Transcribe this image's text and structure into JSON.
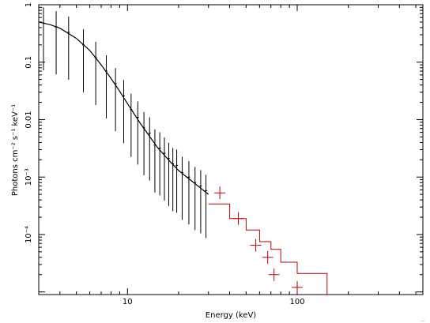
{
  "chart_data": {
    "type": "line",
    "xlabel": "Energy (keV)",
    "ylabel": "Photons cm⁻² s⁻¹ keV⁻¹",
    "xscale": "log",
    "yscale": "log",
    "xlim": [
      3,
      550
    ],
    "ylim": [
      9e-06,
      1
    ],
    "x_ticks": [
      {
        "value": 10,
        "label": "10"
      },
      {
        "value": 100,
        "label": "100"
      }
    ],
    "y_ticks": [
      {
        "value": 1,
        "label": "1"
      },
      {
        "value": 0.1,
        "label": "0.1"
      },
      {
        "value": 0.01,
        "label": "0.01"
      },
      {
        "value": 0.001,
        "label": "10⁻³"
      },
      {
        "value": 0.0001,
        "label": "10⁻⁴"
      }
    ],
    "grid": false,
    "series": [
      {
        "color": "#000000",
        "kind": "model-curve",
        "x": [
          3,
          3.5,
          4,
          5,
          6,
          7,
          8,
          9,
          10,
          12,
          15,
          18,
          20,
          25,
          30
        ],
        "y": [
          0.5,
          0.45,
          0.39,
          0.26,
          0.16,
          0.09,
          0.052,
          0.031,
          0.019,
          0.0083,
          0.0033,
          0.0018,
          0.0013,
          0.00077,
          0.0005
        ]
      },
      {
        "color": "#000000",
        "kind": "data-points",
        "x": [
          3.2,
          3.8,
          4.5,
          5.5,
          6.5,
          7.5,
          8.5,
          9.5,
          10.5,
          11.5,
          12.5,
          13.5,
          14.5,
          15.5,
          16.5,
          17.5,
          18.5,
          19.5,
          21,
          23,
          25,
          27,
          29
        ],
        "y": [
          0.48,
          0.41,
          0.33,
          0.2,
          0.12,
          0.07,
          0.042,
          0.026,
          0.015,
          0.011,
          0.0072,
          0.0058,
          0.0036,
          0.0032,
          0.0026,
          0.0021,
          0.0017,
          0.0016,
          0.0012,
          0.001,
          0.0008,
          0.0007,
          0.00058
        ]
      },
      {
        "color": "#c00000",
        "kind": "model-step",
        "edges": [
          30,
          40,
          50,
          60,
          70,
          80,
          100,
          150
        ],
        "y": [
          0.00034,
          0.00019,
          0.00012,
          7.5e-05,
          5.5e-05,
          3.3e-05,
          2.1e-05
        ]
      },
      {
        "color": "#c00000",
        "kind": "data-points",
        "x": [
          35,
          45,
          57,
          67,
          73,
          100
        ],
        "y": [
          0.00053,
          0.00019,
          6.5e-05,
          4e-05,
          2e-05,
          1.2e-05
        ]
      }
    ]
  },
  "corner_note": "..."
}
